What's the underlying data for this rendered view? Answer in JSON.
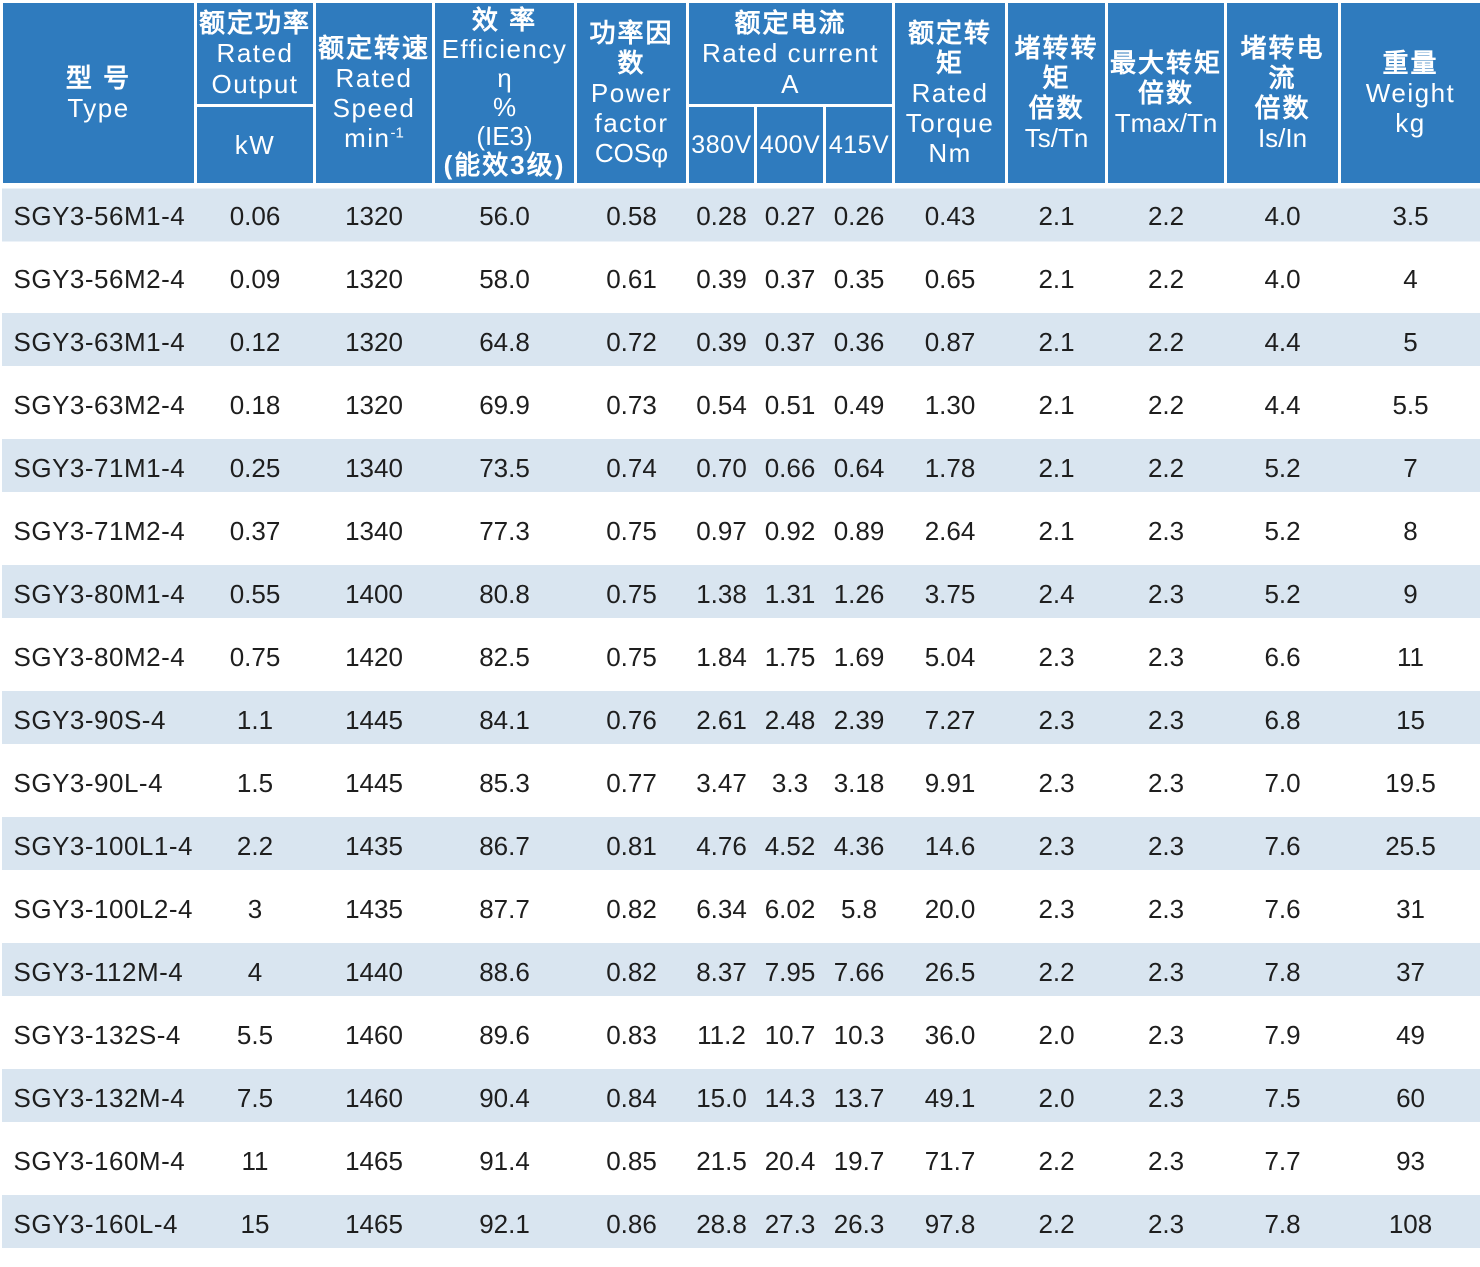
{
  "colors": {
    "header_bg": "#2F7BBE",
    "row_stripe": "#D9E5F0",
    "row_plain": "#FFFFFF",
    "header_text": "#FFFFFF",
    "body_text": "#1E1E1E"
  },
  "table": {
    "header": {
      "type": {
        "zh": "型 号",
        "en": "Type"
      },
      "rated_output": {
        "zh": "额定功率",
        "en1": "Rated",
        "en2": "Output",
        "unit": "kW"
      },
      "rated_speed": {
        "zh": "额定转速",
        "en1": "Rated",
        "en2": "Speed",
        "unit_base": "min",
        "unit_sup": "-1"
      },
      "efficiency": {
        "zh": "效 率",
        "en": "Efficiency",
        "symbol": "η",
        "percent": "%",
        "ie3": "(IE3)",
        "zh_note": "(能效3级)"
      },
      "power_factor": {
        "zh": "功率因数",
        "en1": "Power",
        "en2": "factor",
        "symbol": "COSφ"
      },
      "rated_current": {
        "zh": "额定电流",
        "en": "Rated current",
        "unit": "A",
        "volt_380": "380V",
        "volt_400": "400V",
        "volt_415": "415V"
      },
      "rated_torque": {
        "zh": "额定转矩",
        "en1": "Rated",
        "en2": "Torque",
        "unit": "Nm"
      },
      "ts_tn": {
        "zh1": "堵转转矩",
        "zh2": "倍数",
        "symbol": "Ts/Tn"
      },
      "tmax_tn": {
        "zh1": "最大转矩",
        "zh2": "倍数",
        "symbol": "Tmax/Tn"
      },
      "is_in": {
        "zh1": "堵转电流",
        "zh2": "倍数",
        "symbol": "Is/In"
      },
      "weight": {
        "zh": "重量",
        "en": "Weight",
        "unit": "kg"
      }
    },
    "rows": [
      {
        "type": "SGY3-56M1-4",
        "values": [
          "0.06",
          "1320",
          "56.0",
          "0.58",
          "0.28",
          "0.27",
          "0.26",
          "0.43",
          "2.1",
          "2.2",
          "4.0",
          "3.5"
        ]
      },
      {
        "type": "SGY3-56M2-4",
        "values": [
          "0.09",
          "1320",
          "58.0",
          "0.61",
          "0.39",
          "0.37",
          "0.35",
          "0.65",
          "2.1",
          "2.2",
          "4.0",
          "4"
        ]
      },
      {
        "type": "SGY3-63M1-4",
        "values": [
          "0.12",
          "1320",
          "64.8",
          "0.72",
          "0.39",
          "0.37",
          "0.36",
          "0.87",
          "2.1",
          "2.2",
          "4.4",
          "5"
        ]
      },
      {
        "type": "SGY3-63M2-4",
        "values": [
          "0.18",
          "1320",
          "69.9",
          "0.73",
          "0.54",
          "0.51",
          "0.49",
          "1.30",
          "2.1",
          "2.2",
          "4.4",
          "5.5"
        ]
      },
      {
        "type": "SGY3-71M1-4",
        "values": [
          "0.25",
          "1340",
          "73.5",
          "0.74",
          "0.70",
          "0.66",
          "0.64",
          "1.78",
          "2.1",
          "2.2",
          "5.2",
          "7"
        ]
      },
      {
        "type": "SGY3-71M2-4",
        "values": [
          "0.37",
          "1340",
          "77.3",
          "0.75",
          "0.97",
          "0.92",
          "0.89",
          "2.64",
          "2.1",
          "2.3",
          "5.2",
          "8"
        ]
      },
      {
        "type": "SGY3-80M1-4",
        "values": [
          "0.55",
          "1400",
          "80.8",
          "0.75",
          "1.38",
          "1.31",
          "1.26",
          "3.75",
          "2.4",
          "2.3",
          "5.2",
          "9"
        ]
      },
      {
        "type": "SGY3-80M2-4",
        "values": [
          "0.75",
          "1420",
          "82.5",
          "0.75",
          "1.84",
          "1.75",
          "1.69",
          "5.04",
          "2.3",
          "2.3",
          "6.6",
          "11"
        ]
      },
      {
        "type": "SGY3-90S-4",
        "values": [
          "1.1",
          "1445",
          "84.1",
          "0.76",
          "2.61",
          "2.48",
          "2.39",
          "7.27",
          "2.3",
          "2.3",
          "6.8",
          "15"
        ]
      },
      {
        "type": "SGY3-90L-4",
        "values": [
          "1.5",
          "1445",
          "85.3",
          "0.77",
          "3.47",
          "3.3",
          "3.18",
          "9.91",
          "2.3",
          "2.3",
          "7.0",
          "19.5"
        ]
      },
      {
        "type": "SGY3-100L1-4",
        "values": [
          "2.2",
          "1435",
          "86.7",
          "0.81",
          "4.76",
          "4.52",
          "4.36",
          "14.6",
          "2.3",
          "2.3",
          "7.6",
          "25.5"
        ]
      },
      {
        "type": "SGY3-100L2-4",
        "values": [
          "3",
          "1435",
          "87.7",
          "0.82",
          "6.34",
          "6.02",
          "5.8",
          "20.0",
          "2.3",
          "2.3",
          "7.6",
          "31"
        ]
      },
      {
        "type": "SGY3-112M-4",
        "values": [
          "4",
          "1440",
          "88.6",
          "0.82",
          "8.37",
          "7.95",
          "7.66",
          "26.5",
          "2.2",
          "2.3",
          "7.8",
          "37"
        ]
      },
      {
        "type": "SGY3-132S-4",
        "values": [
          "5.5",
          "1460",
          "89.6",
          "0.83",
          "11.2",
          "10.7",
          "10.3",
          "36.0",
          "2.0",
          "2.3",
          "7.9",
          "49"
        ]
      },
      {
        "type": "SGY3-132M-4",
        "values": [
          "7.5",
          "1460",
          "90.4",
          "0.84",
          "15.0",
          "14.3",
          "13.7",
          "49.1",
          "2.0",
          "2.3",
          "7.5",
          "60"
        ]
      },
      {
        "type": "SGY3-160M-4",
        "values": [
          "11",
          "1465",
          "91.4",
          "0.85",
          "21.5",
          "20.4",
          "19.7",
          "71.7",
          "2.2",
          "2.3",
          "7.7",
          "93"
        ]
      },
      {
        "type": "SGY3-160L-4",
        "values": [
          "15",
          "1465",
          "92.1",
          "0.86",
          "28.8",
          "27.3",
          "26.3",
          "97.8",
          "2.2",
          "2.3",
          "7.8",
          "108"
        ]
      }
    ]
  }
}
